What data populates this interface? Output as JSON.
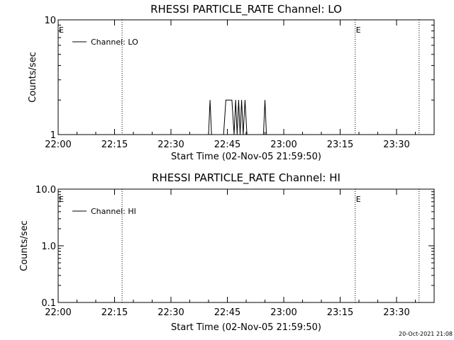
{
  "chart_data": [
    {
      "type": "line",
      "title": "RHESSI PARTICLE_RATE Channel: LO",
      "xlabel": "Start Time (02-Nov-05 21:59:50)",
      "ylabel": "Counts/sec",
      "y_scale": "log",
      "ylim": [
        1,
        10
      ],
      "y_ticks": [
        {
          "value": 1,
          "label": "1"
        },
        {
          "value": 10,
          "label": "10"
        }
      ],
      "x_ticks": [
        "22:00",
        "22:15",
        "22:30",
        "22:45",
        "23:00",
        "23:15",
        "23:30"
      ],
      "flag_label": "E",
      "flag_positions": [
        "22:00",
        "23:19"
      ],
      "dotted_times": [
        "22:17",
        "23:19",
        "23:36"
      ],
      "legend": {
        "position": "top-left",
        "label": "Channel: LO"
      },
      "series": [
        {
          "name": "Channel: LO",
          "points": [
            [
              "22:00",
              1
            ],
            [
              "22:40.0",
              1
            ],
            [
              "22:40.4",
              2
            ],
            [
              "22:40.8",
              1
            ],
            [
              "22:44.0",
              1
            ],
            [
              "22:44.6",
              2
            ],
            [
              "22:46.2",
              2
            ],
            [
              "22:46.8",
              1
            ],
            [
              "22:47.2",
              2
            ],
            [
              "22:47.6",
              1
            ],
            [
              "22:48.0",
              2
            ],
            [
              "22:48.4",
              1
            ],
            [
              "22:48.8",
              2
            ],
            [
              "22:49.2",
              1
            ],
            [
              "22:49.7",
              2
            ],
            [
              "22:50.2",
              1
            ],
            [
              "22:54.6",
              1
            ],
            [
              "22:55.0",
              2
            ],
            [
              "22:55.4",
              1
            ]
          ]
        }
      ]
    },
    {
      "type": "line",
      "title": "RHESSI PARTICLE_RATE Channel: HI",
      "xlabel": "Start Time (02-Nov-05 21:59:50)",
      "ylabel": "Counts/sec",
      "y_scale": "log",
      "ylim": [
        0.1,
        10
      ],
      "y_ticks": [
        {
          "value": 0.1,
          "label": "0.1"
        },
        {
          "value": 1,
          "label": "1.0"
        },
        {
          "value": 10,
          "label": "10.0"
        }
      ],
      "x_ticks": [
        "22:00",
        "22:15",
        "22:30",
        "22:45",
        "23:00",
        "23:15",
        "23:30"
      ],
      "flag_label": "E",
      "flag_positions": [
        "22:00",
        "23:19"
      ],
      "dotted_times": [
        "22:17",
        "23:19",
        "23:36"
      ],
      "legend": {
        "position": "top-left",
        "label": "Channel: HI"
      },
      "series": [
        {
          "name": "Channel: HI",
          "points": []
        }
      ]
    }
  ],
  "footer": {
    "timestamp": "20-Oct-2021 21:08"
  }
}
